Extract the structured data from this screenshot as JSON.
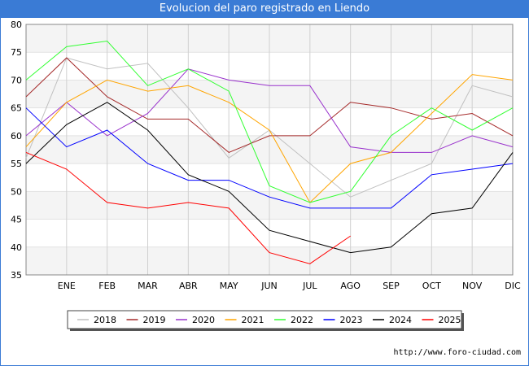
{
  "title": "Evolucion del paro registrado en Liendo",
  "source": "http://www.foro-ciudad.com",
  "chart_data": {
    "type": "line",
    "categories": [
      "",
      "ENE",
      "FEB",
      "MAR",
      "ABR",
      "MAY",
      "JUN",
      "JUL",
      "AGO",
      "SEP",
      "OCT",
      "NOV",
      "DIC"
    ],
    "ylim": [
      35,
      80
    ],
    "yticks": [
      35,
      40,
      45,
      50,
      55,
      60,
      65,
      70,
      75,
      80
    ],
    "grid": true,
    "legend_position": "bottom",
    "series": [
      {
        "name": "2018",
        "color": "#c0c0c0",
        "values": [
          56,
          74,
          72,
          73,
          65,
          56,
          61,
          55,
          49,
          52,
          55,
          69,
          67
        ]
      },
      {
        "name": "2019",
        "color": "#a52a2a",
        "values": [
          67,
          74,
          67,
          63,
          63,
          57,
          60,
          60,
          66,
          65,
          63,
          64,
          60
        ]
      },
      {
        "name": "2020",
        "color": "#9932cc",
        "values": [
          60,
          66,
          60,
          64,
          72,
          70,
          69,
          69,
          58,
          57,
          57,
          60,
          58
        ]
      },
      {
        "name": "2021",
        "color": "#ffa500",
        "values": [
          58,
          66,
          70,
          68,
          69,
          66,
          61,
          48,
          55,
          57,
          64,
          71,
          70
        ]
      },
      {
        "name": "2022",
        "color": "#33ff33",
        "values": [
          70,
          76,
          77,
          69,
          72,
          68,
          51,
          48,
          50,
          60,
          65,
          61,
          65
        ]
      },
      {
        "name": "2023",
        "color": "#0000ff",
        "values": [
          65,
          58,
          61,
          55,
          52,
          52,
          49,
          47,
          47,
          47,
          53,
          54,
          55
        ]
      },
      {
        "name": "2024",
        "color": "#000000",
        "values": [
          55,
          62,
          66,
          61,
          53,
          50,
          43,
          41,
          39,
          40,
          46,
          47,
          57
        ]
      },
      {
        "name": "2025",
        "color": "#ff0000",
        "values": [
          57,
          54,
          48,
          47,
          48,
          47,
          39,
          37,
          42,
          null,
          null,
          null,
          null
        ]
      }
    ]
  }
}
